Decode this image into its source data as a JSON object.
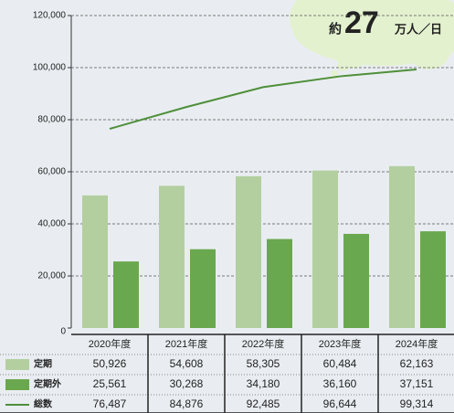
{
  "chart_data": {
    "type": "bar",
    "categories": [
      "2020年度",
      "2021年度",
      "2022年度",
      "2023年度",
      "2024年度"
    ],
    "series": [
      {
        "name": "定期",
        "color": "#b3cfa0",
        "values": [
          50926,
          54608,
          58305,
          60484,
          62163
        ],
        "value_labels": [
          "50,926",
          "54,608",
          "58,305",
          "60,484",
          "62,163"
        ]
      },
      {
        "name": "定期外",
        "color": "#6aa84f",
        "values": [
          25561,
          30268,
          34180,
          36160,
          37151
        ],
        "value_labels": [
          "25,561",
          "30,268",
          "34,180",
          "36,160",
          "37,151"
        ]
      },
      {
        "name": "総数",
        "type": "line",
        "color": "#4f8f3a",
        "values": [
          76487,
          84876,
          92485,
          96644,
          99314
        ],
        "value_labels": [
          "76,487",
          "84,876",
          "92,485",
          "96,644",
          "99,314"
        ]
      }
    ],
    "ylim": [
      0,
      120000
    ],
    "yticks": [
      0,
      {
        "value": 20000,
        "label": "20,000"
      },
      {
        "value": 40000,
        "label": "40,000"
      },
      {
        "value": 60000,
        "label": "60,000"
      },
      {
        "value": 80000,
        "label": "80,000"
      },
      {
        "value": 100000,
        "label": "100,000"
      },
      {
        "value": 120000,
        "label": "120,000"
      }
    ],
    "grid": true,
    "annotation": {
      "prefix": "約",
      "number": "27",
      "suffix": "万人／日"
    }
  }
}
